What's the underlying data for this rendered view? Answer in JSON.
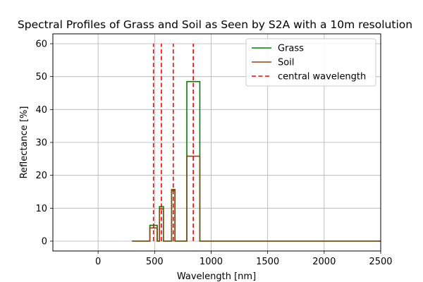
{
  "chart_data": {
    "type": "line",
    "title": "Spectral Profiles of Grass and Soil as Seen by S2A with a 10m resolution",
    "xlabel": "Wavelength [nm]",
    "ylabel": "Reflectance [%]",
    "xlim": [
      -400,
      2500
    ],
    "ylim": [
      -3,
      63
    ],
    "xticks": [
      0,
      500,
      1000,
      1500,
      2000,
      2500
    ],
    "yticks": [
      0,
      10,
      20,
      30,
      40,
      50,
      60
    ],
    "grid": true,
    "legend_position": "top-right",
    "series": [
      {
        "name": "Grass",
        "color": "#008000",
        "style": "solid",
        "x": [
          300,
          458,
          458,
          523,
          523,
          543,
          543,
          578,
          578,
          650,
          650,
          680,
          680,
          785,
          785,
          900,
          900,
          2500
        ],
        "y": [
          0,
          0,
          4.8,
          4.8,
          0,
          0,
          10.5,
          10.5,
          0,
          0,
          15.3,
          15.3,
          0,
          0,
          48.5,
          48.5,
          0,
          0
        ]
      },
      {
        "name": "Soil",
        "color": "#8B4513",
        "style": "solid",
        "x": [
          300,
          458,
          458,
          523,
          523,
          543,
          543,
          578,
          578,
          650,
          650,
          680,
          680,
          785,
          785,
          900,
          900,
          2500
        ],
        "y": [
          0,
          0,
          4.0,
          4.0,
          0,
          0,
          9.8,
          9.8,
          0,
          0,
          15.7,
          15.7,
          0,
          0,
          25.8,
          25.8,
          0,
          0
        ]
      },
      {
        "name": "central wavelength",
        "color": "#ff0000",
        "style": "dashed",
        "x_lines": [
          490,
          560,
          665,
          842
        ],
        "y_range": [
          0,
          60
        ]
      }
    ]
  }
}
